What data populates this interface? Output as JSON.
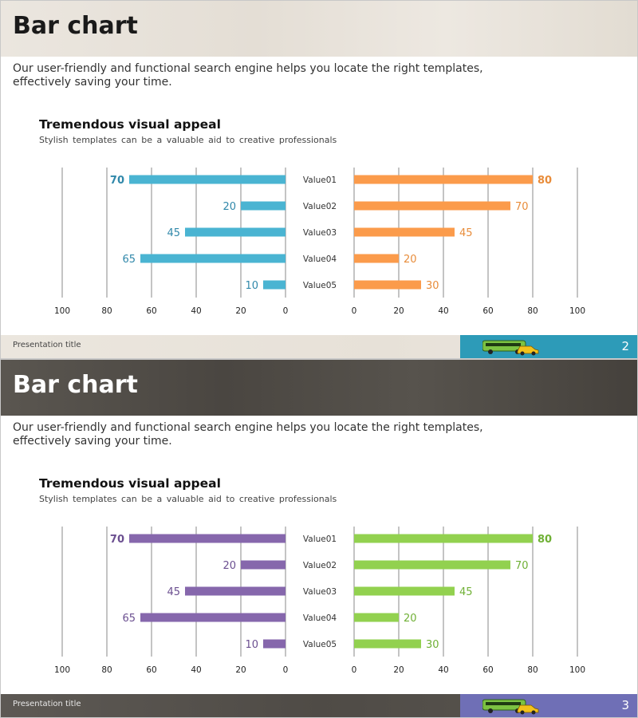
{
  "slides": [
    {
      "title": "Bar chart",
      "description": "Our user-friendly and functional search engine helps you locate the right templates, effectively saving your time.",
      "subtitle": "Tremendous visual appeal",
      "subdescription": "Stylish templates can be a valuable aid to creative professionals",
      "footer_text": "Presentation title",
      "page_number": "2",
      "colors": {
        "left": "#4ab4d2",
        "right": "#fb9b4b",
        "left_label": "#3088aa",
        "right_label": "#e88c3a",
        "footer_image": "#2d9bb8"
      },
      "icons": [
        "bus-icon",
        "taxi-icon"
      ]
    },
    {
      "title": "Bar chart",
      "description": "Our user-friendly and functional search engine helps you locate the right templates, effectively saving your time.",
      "subtitle": "Tremendous visual appeal",
      "subdescription": "Stylish templates can be a valuable aid to creative professionals",
      "footer_text": "Presentation title",
      "page_number": "3",
      "colors": {
        "left": "#8667ac",
        "right": "#92d14f",
        "left_label": "#6b4f90",
        "right_label": "#6fb035",
        "footer_image": "#6f6fb6"
      },
      "icons": [
        "bus-icon",
        "taxi-icon"
      ]
    }
  ],
  "chart_data": [
    {
      "type": "bar",
      "orientation": "horizontal",
      "layout": "butterfly",
      "categories": [
        "Value01",
        "Value02",
        "Value03",
        "Value04",
        "Value05"
      ],
      "series": [
        {
          "name": "left",
          "values": [
            70,
            20,
            45,
            65,
            10
          ]
        },
        {
          "name": "right",
          "values": [
            80,
            70,
            45,
            20,
            30
          ]
        }
      ],
      "xlim": [
        0,
        100
      ],
      "ticks": [
        "100",
        "80",
        "60",
        "40",
        "20",
        "0"
      ],
      "title": "Tremendous visual appeal",
      "grid": true
    },
    {
      "type": "bar",
      "orientation": "horizontal",
      "layout": "butterfly",
      "categories": [
        "Value01",
        "Value02",
        "Value03",
        "Value04",
        "Value05"
      ],
      "series": [
        {
          "name": "left",
          "values": [
            70,
            20,
            45,
            65,
            10
          ]
        },
        {
          "name": "right",
          "values": [
            80,
            70,
            45,
            20,
            30
          ]
        }
      ],
      "xlim": [
        0,
        100
      ],
      "ticks": [
        "100",
        "80",
        "60",
        "40",
        "20",
        "0"
      ],
      "title": "Tremendous visual appeal",
      "grid": true
    }
  ]
}
